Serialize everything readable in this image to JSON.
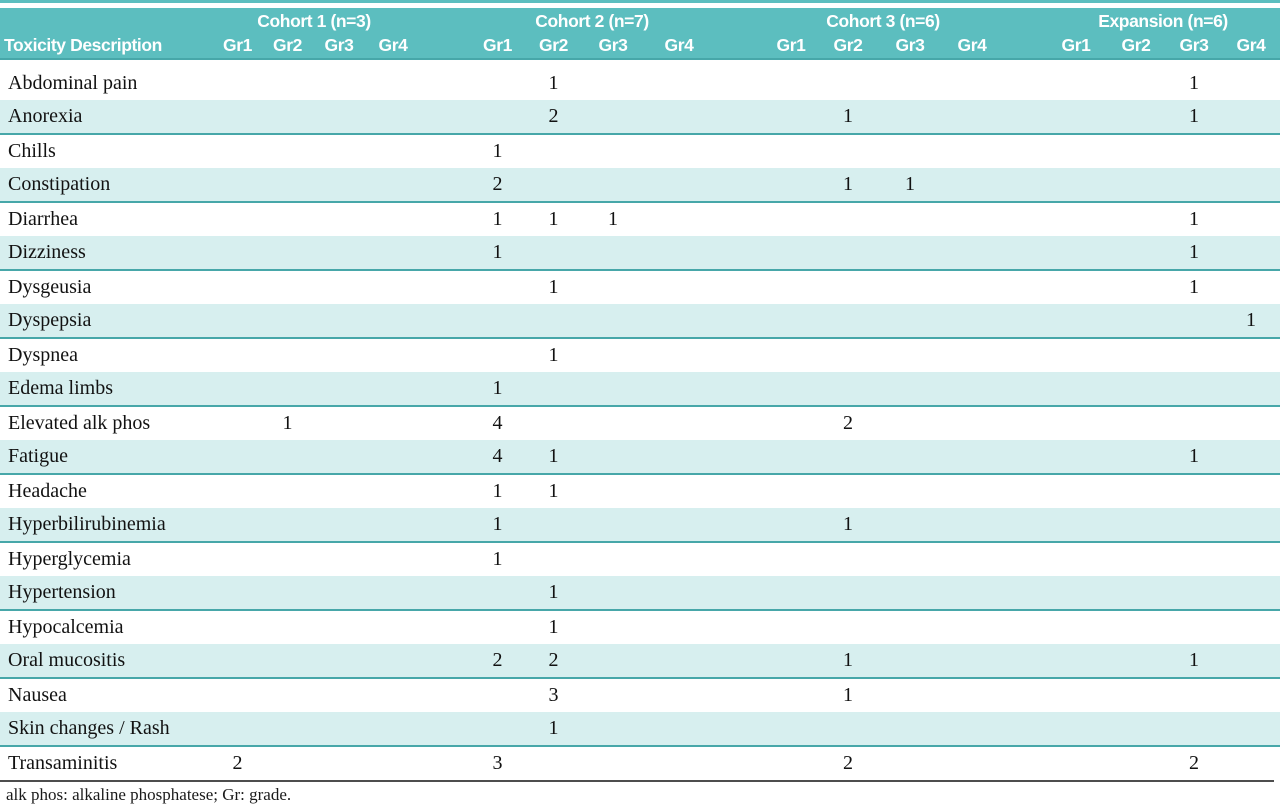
{
  "colors": {
    "header_bg": "#5cbebf",
    "stripe_bg": "#d7efef",
    "stripe_border": "#47a7a9",
    "bottom_rule": "#4d4d4d",
    "header_text": "#ffffff",
    "body_text": "#121212"
  },
  "header": {
    "row_label_header": "Toxicity Description",
    "groups": [
      {
        "label": "Cohort 1 (n=3)"
      },
      {
        "label": "Cohort 2 (n=7)"
      },
      {
        "label": "Cohort 3 (n=6)"
      },
      {
        "label": "Expansion (n=6)"
      }
    ],
    "grade_labels": [
      "Gr1",
      "Gr2",
      "Gr3",
      "Gr4"
    ]
  },
  "rows": [
    {
      "toxicity": "Abdominal pain",
      "values": [
        "",
        "",
        "",
        "",
        "",
        "1",
        "",
        "",
        "",
        "",
        "",
        "",
        "",
        "",
        "1",
        ""
      ]
    },
    {
      "toxicity": "Anorexia",
      "values": [
        "",
        "",
        "",
        "",
        "",
        "2",
        "",
        "",
        "",
        "1",
        "",
        "",
        "",
        "",
        "1",
        ""
      ]
    },
    {
      "toxicity": "Chills",
      "values": [
        "",
        "",
        "",
        "",
        "1",
        "",
        "",
        "",
        "",
        "",
        "",
        "",
        "",
        "",
        "",
        ""
      ]
    },
    {
      "toxicity": "Constipation",
      "values": [
        "",
        "",
        "",
        "",
        "2",
        "",
        "",
        "",
        "",
        "1",
        "1",
        "",
        "",
        "",
        "",
        ""
      ]
    },
    {
      "toxicity": "Diarrhea",
      "values": [
        "",
        "",
        "",
        "",
        "1",
        "1",
        "1",
        "",
        "",
        "",
        "",
        "",
        "",
        "",
        "1",
        ""
      ]
    },
    {
      "toxicity": "Dizziness",
      "values": [
        "",
        "",
        "",
        "",
        "1",
        "",
        "",
        "",
        "",
        "",
        "",
        "",
        "",
        "",
        "1",
        ""
      ]
    },
    {
      "toxicity": "Dysgeusia",
      "values": [
        "",
        "",
        "",
        "",
        "",
        "1",
        "",
        "",
        "",
        "",
        "",
        "",
        "",
        "",
        "1",
        ""
      ]
    },
    {
      "toxicity": "Dyspepsia",
      "values": [
        "",
        "",
        "",
        "",
        "",
        "",
        "",
        "",
        "",
        "",
        "",
        "",
        "",
        "",
        "",
        "1"
      ]
    },
    {
      "toxicity": "Dyspnea",
      "values": [
        "",
        "",
        "",
        "",
        "",
        "1",
        "",
        "",
        "",
        "",
        "",
        "",
        "",
        "",
        "",
        ""
      ]
    },
    {
      "toxicity": "Edema limbs",
      "values": [
        "",
        "",
        "",
        "",
        "1",
        "",
        "",
        "",
        "",
        "",
        "",
        "",
        "",
        "",
        "",
        ""
      ]
    },
    {
      "toxicity": "Elevated alk phos",
      "values": [
        "",
        "1",
        "",
        "",
        "4",
        "",
        "",
        "",
        "",
        "2",
        "",
        "",
        "",
        "",
        "",
        ""
      ]
    },
    {
      "toxicity": "Fatigue",
      "values": [
        "",
        "",
        "",
        "",
        "4",
        "1",
        "",
        "",
        "",
        "",
        "",
        "",
        "",
        "",
        "1",
        ""
      ]
    },
    {
      "toxicity": "Headache",
      "values": [
        "",
        "",
        "",
        "",
        "1",
        "1",
        "",
        "",
        "",
        "",
        "",
        "",
        "",
        "",
        "",
        ""
      ]
    },
    {
      "toxicity": "Hyperbilirubinemia",
      "values": [
        "",
        "",
        "",
        "",
        "1",
        "",
        "",
        "",
        "",
        "1",
        "",
        "",
        "",
        "",
        "",
        ""
      ]
    },
    {
      "toxicity": "Hyperglycemia",
      "values": [
        "",
        "",
        "",
        "",
        "1",
        "",
        "",
        "",
        "",
        "",
        "",
        "",
        "",
        "",
        "",
        ""
      ]
    },
    {
      "toxicity": "Hypertension",
      "values": [
        "",
        "",
        "",
        "",
        "",
        "1",
        "",
        "",
        "",
        "",
        "",
        "",
        "",
        "",
        "",
        ""
      ]
    },
    {
      "toxicity": "Hypocalcemia",
      "values": [
        "",
        "",
        "",
        "",
        "",
        "1",
        "",
        "",
        "",
        "",
        "",
        "",
        "",
        "",
        "",
        ""
      ]
    },
    {
      "toxicity": "Oral mucositis",
      "values": [
        "",
        "",
        "",
        "",
        "2",
        "2",
        "",
        "",
        "",
        "1",
        "",
        "",
        "",
        "",
        "1",
        ""
      ]
    },
    {
      "toxicity": "Nausea",
      "values": [
        "",
        "",
        "",
        "",
        "",
        "3",
        "",
        "",
        "",
        "1",
        "",
        "",
        "",
        "",
        "",
        ""
      ]
    },
    {
      "toxicity": "Skin changes / Rash",
      "values": [
        "",
        "",
        "",
        "",
        "",
        "1",
        "",
        "",
        "",
        "",
        "",
        "",
        "",
        "",
        "",
        ""
      ]
    },
    {
      "toxicity": "Transaminitis",
      "values": [
        "2",
        "",
        "",
        "",
        "3",
        "",
        "",
        "",
        "",
        "2",
        "",
        "",
        "",
        "",
        "2",
        ""
      ]
    }
  ],
  "footnote": "alk phos: alkaline phosphatese; Gr: grade."
}
